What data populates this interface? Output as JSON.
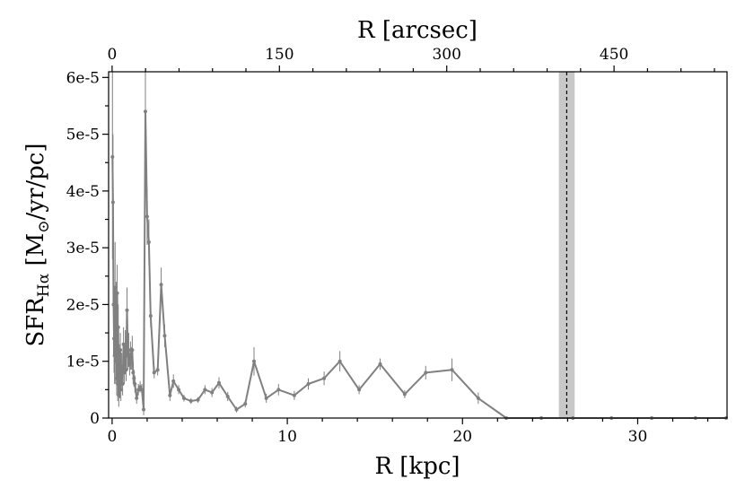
{
  "chart_data": {
    "type": "line",
    "xlabel": "R [kpc]",
    "ylabel": "SFR",
    "ylabel_sub": "Hα",
    "ylabel_units": " [M",
    "ylabel_sun": "⊙",
    "ylabel_units_end": "/yr/pc]",
    "top_xlabel": "R [arcsec]",
    "xlim": [
      -0.2,
      35.1
    ],
    "ylim": [
      0,
      6.1e-05
    ],
    "x_ticks": [
      0,
      10,
      20,
      30
    ],
    "x_tick_labels": [
      "0",
      "10",
      "20",
      "30"
    ],
    "y_ticks": [
      0,
      1e-05,
      2e-05,
      3e-05,
      4e-05,
      5e-05,
      6e-05
    ],
    "y_tick_labels": [
      "0",
      "1e-5",
      "2e-5",
      "3e-5",
      "4e-5",
      "5e-5",
      "6e-5"
    ],
    "top_ticks_kpc": [
      0,
      9.55,
      19.1,
      28.65
    ],
    "top_tick_labels": [
      "0",
      "150",
      "300",
      "450"
    ],
    "vline": {
      "x": 25.95,
      "band": [
        25.5,
        26.4
      ],
      "style": "dashed"
    },
    "series": [
      {
        "color": "#808080",
        "x": [
          0.02,
          0.05,
          0.08,
          0.11,
          0.14,
          0.17,
          0.2,
          0.23,
          0.26,
          0.29,
          0.32,
          0.35,
          0.38,
          0.41,
          0.44,
          0.47,
          0.5,
          0.55,
          0.6,
          0.65,
          0.7,
          0.75,
          0.8,
          0.85,
          0.9,
          0.95,
          1.0,
          1.05,
          1.1,
          1.15,
          1.2,
          1.25,
          1.3,
          1.4,
          1.5,
          1.6,
          1.7,
          1.8,
          1.9,
          2.0,
          2.1,
          2.2,
          2.4,
          2.6,
          2.8,
          3.0,
          3.3,
          3.5,
          3.8,
          4.1,
          4.5,
          4.9,
          5.3,
          5.7,
          6.1,
          6.6,
          7.1,
          7.6,
          8.1,
          8.8,
          9.5,
          10.4,
          11.2,
          12.1,
          13.0,
          14.1,
          15.3,
          16.7,
          17.9,
          19.4,
          20.9,
          22.5,
          24.5,
          26.3,
          28.5,
          30.8,
          33.3,
          35.1
        ],
        "y": [
          4.6e-05,
          3.8e-05,
          2e-05,
          1.4e-05,
          1.1e-05,
          2.3e-05,
          1e-05,
          1.8e-05,
          7e-06,
          2.2e-05,
          6e-06,
          1.6e-05,
          4e-06,
          1e-05,
          5.5e-06,
          1.2e-05,
          5e-06,
          9e-06,
          6e-06,
          1.3e-05,
          8e-06,
          1.25e-05,
          8.5e-06,
          1.9e-05,
          1.1e-05,
          1.2e-05,
          9.5e-06,
          1.1e-05,
          1.05e-05,
          1.2e-05,
          8e-06,
          7e-06,
          6e-06,
          3.5e-06,
          5e-06,
          5.5e-06,
          5e-06,
          1.5e-06,
          5.4e-05,
          3.55e-05,
          3.1e-05,
          1.8e-05,
          8e-06,
          8.5e-06,
          2.35e-05,
          1.45e-05,
          4e-06,
          6.5e-06,
          5e-06,
          3.5e-06,
          3e-06,
          3.2e-06,
          5e-06,
          4.5e-06,
          6.2e-06,
          3.8e-06,
          1.5e-06,
          2.5e-06,
          1e-05,
          3.5e-06,
          5e-06,
          4e-06,
          6e-06,
          7e-06,
          1e-05,
          5e-06,
          9.5e-06,
          4.2e-06,
          8e-06,
          8.5e-06,
          3.5e-06,
          0.0,
          0.0,
          0.0,
          0.0,
          0.0,
          0.0,
          0.0
        ],
        "err": [
          1.8e-05,
          1.2e-05,
          9e-06,
          6e-06,
          5e-06,
          8e-06,
          4e-06,
          6e-06,
          3e-06,
          5e-06,
          3e-06,
          4e-06,
          2e-06,
          3e-06,
          2e-06,
          3e-06,
          2e-06,
          2.5e-06,
          2e-06,
          3e-06,
          2e-06,
          3e-06,
          2e-06,
          4e-06,
          2.5e-06,
          3e-06,
          2e-06,
          2.5e-06,
          2e-06,
          2.5e-06,
          2e-06,
          1.5e-06,
          1.5e-06,
          1e-06,
          1e-06,
          1e-06,
          1e-06,
          1e-06,
          8e-06,
          5e-06,
          4e-06,
          2e-06,
          1e-06,
          1e-06,
          3e-06,
          2e-06,
          1e-06,
          1.2e-06,
          8e-07,
          6e-07,
          5e-07,
          5e-07,
          8e-07,
          8e-07,
          1e-06,
          8e-07,
          5e-07,
          6e-07,
          2.5e-06,
          8e-07,
          1e-06,
          8e-07,
          1e-06,
          1.2e-06,
          1.8e-06,
          8e-07,
          1e-06,
          7e-07,
          1.2e-06,
          2e-06,
          1e-06,
          0.0,
          0.0,
          0.0,
          0.0,
          0.0,
          0.0,
          0.0
        ]
      }
    ]
  }
}
